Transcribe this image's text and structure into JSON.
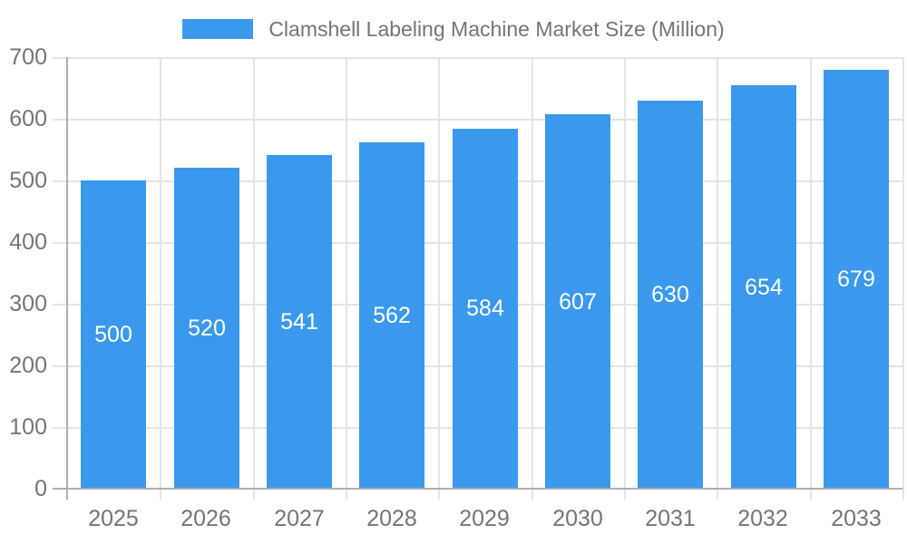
{
  "chart_data": {
    "type": "bar",
    "title": "Clamshell Labeling Machine Market Size (Million)",
    "categories": [
      "2025",
      "2026",
      "2027",
      "2028",
      "2029",
      "2030",
      "2031",
      "2032",
      "2033"
    ],
    "values": [
      500,
      520,
      541,
      562,
      584,
      607,
      630,
      654,
      679
    ],
    "xlabel": "",
    "ylabel": "",
    "ylim": [
      0,
      700
    ],
    "yticks": [
      0,
      100,
      200,
      300,
      400,
      500,
      600,
      700
    ],
    "grid": true,
    "legend_position": "top",
    "value_label_position": "inside-center",
    "colors": {
      "bar": "#3B99ED",
      "value_label": "#FFFFFF",
      "axis_text": "#757575",
      "grid_line": "#E4E4E4",
      "axis_line": "#AFAFAF",
      "background": "#FFFFFF"
    }
  }
}
